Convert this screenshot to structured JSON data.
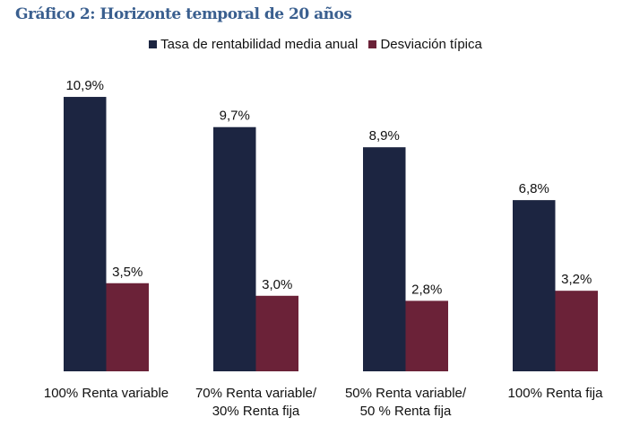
{
  "title": "Gráfico 2: Horizonte temporal de 20 años",
  "chart_data": {
    "type": "bar",
    "title": "Gráfico 2: Horizonte temporal de 20 años",
    "categories": [
      [
        "100% Renta variable"
      ],
      [
        "70% Renta variable/",
        "30% Renta fija"
      ],
      [
        "50% Renta variable/",
        "50 % Renta fija"
      ],
      [
        "100% Renta fija"
      ]
    ],
    "series": [
      {
        "name": "Tasa de rentabilidad media anual",
        "color": "#1c2541",
        "values": [
          10.9,
          9.7,
          8.9,
          6.8
        ],
        "labels": [
          "10,9%",
          "9,7%",
          "8,9%",
          "6,8%"
        ]
      },
      {
        "name": "Desviación típica",
        "color": "#6b2238",
        "values": [
          3.5,
          3.0,
          2.8,
          3.2
        ],
        "labels": [
          "3,5%",
          "3,0%",
          "2,8%",
          "3,2%"
        ]
      }
    ],
    "ylim": [
      0,
      11
    ],
    "legend": "top-center",
    "grid": false
  }
}
